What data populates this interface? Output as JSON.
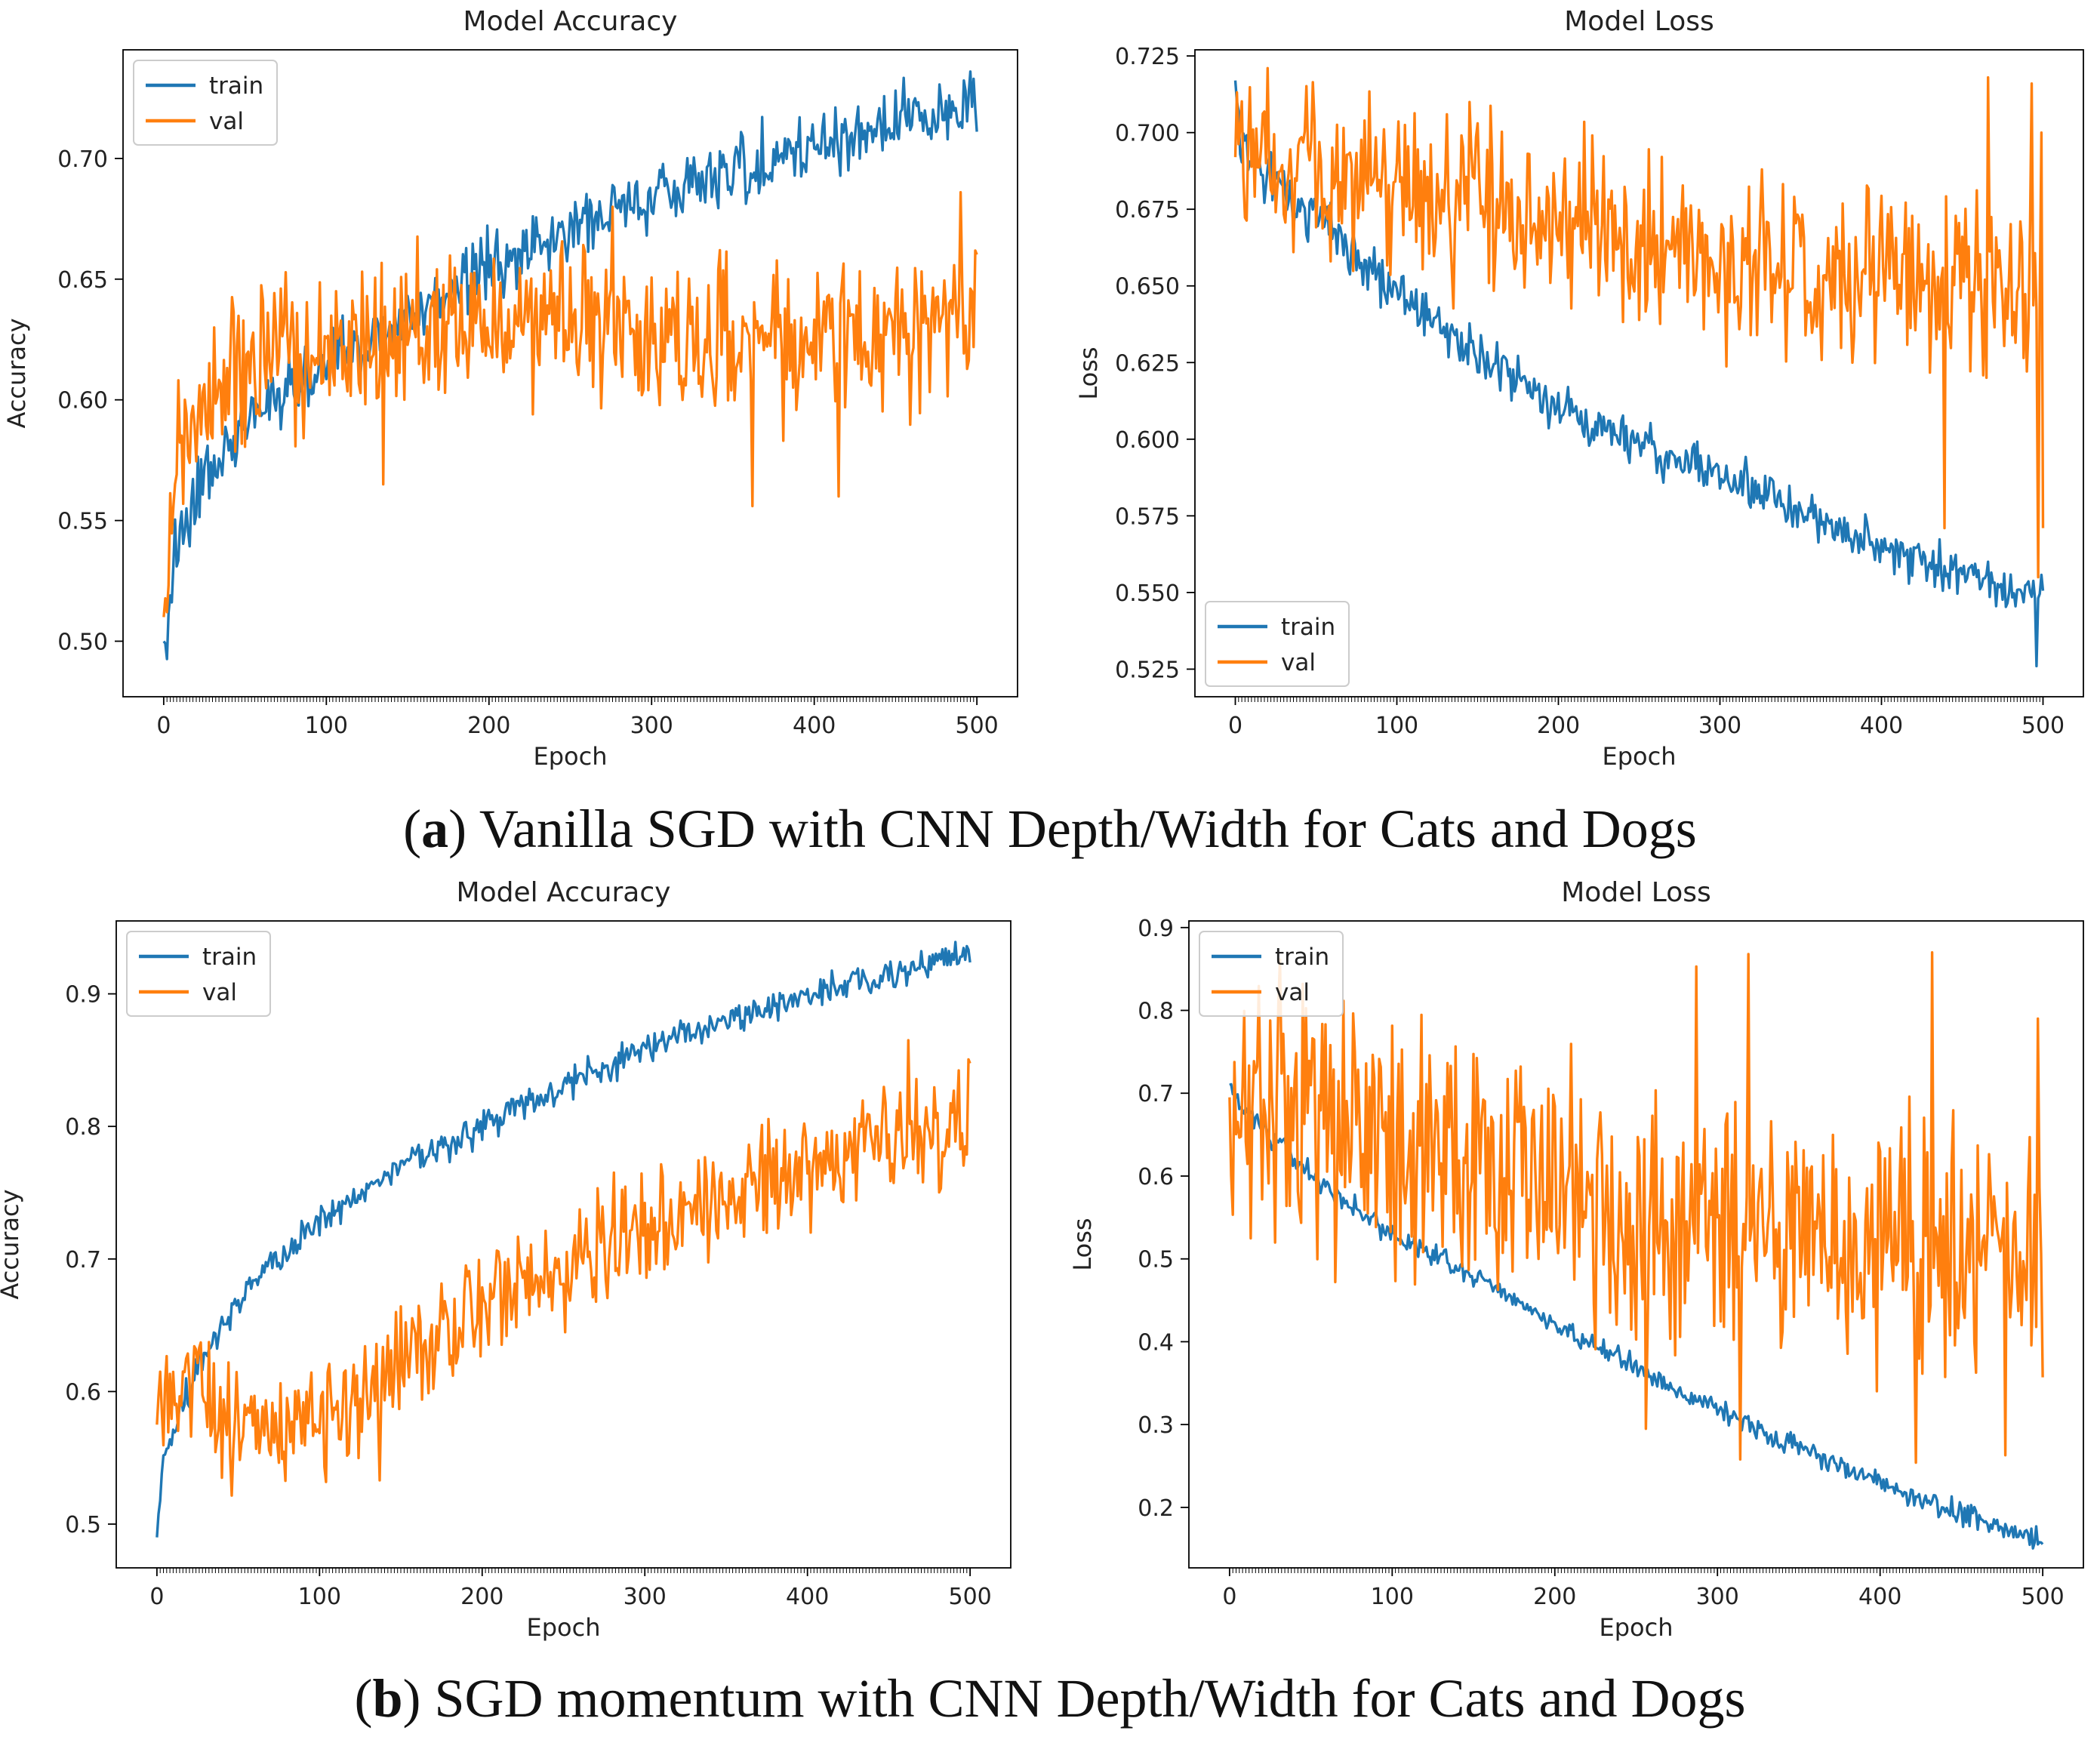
{
  "colors": {
    "train": "#1f77b4",
    "val": "#ff7f0e",
    "axis": "#000000",
    "background": "#ffffff"
  },
  "captions": {
    "a": {
      "letter": "a",
      "text": "Vanilla SGD with CNN Depth/Width for Cats and Dogs"
    },
    "b": {
      "letter": "b",
      "text": "SGD momentum with CNN Depth/Width for Cats and Dogs"
    }
  },
  "chart_data": [
    {
      "id": "a-accuracy",
      "type": "line",
      "title": "Model Accuracy",
      "xlabel": "Epoch",
      "ylabel": "Accuracy",
      "xlim": [
        -25,
        525
      ],
      "ylim": [
        0.477,
        0.745
      ],
      "xticks": [
        0,
        100,
        200,
        300,
        400,
        500
      ],
      "yticks": [
        0.5,
        0.55,
        0.6,
        0.65,
        0.7
      ],
      "ytick_labels": [
        "0.50",
        "0.55",
        "0.60",
        "0.65",
        "0.70"
      ],
      "legend": {
        "position": "top-left",
        "entries": [
          "train",
          "val"
        ]
      },
      "epochs": 500,
      "series": [
        {
          "name": "train",
          "points": [
            [
              0,
              0.5
            ],
            [
              2,
              0.49
            ],
            [
              5,
              0.53
            ],
            [
              10,
              0.545
            ],
            [
              20,
              0.56
            ],
            [
              30,
              0.57
            ],
            [
              50,
              0.59
            ],
            [
              75,
              0.605
            ],
            [
              100,
              0.615
            ],
            [
              150,
              0.635
            ],
            [
              200,
              0.655
            ],
            [
              250,
              0.67
            ],
            [
              300,
              0.685
            ],
            [
              350,
              0.695
            ],
            [
              400,
              0.705
            ],
            [
              450,
              0.715
            ],
            [
              500,
              0.725
            ]
          ],
          "noise": 0.007,
          "extremes": [
            [
              496,
              0.736
            ]
          ]
        },
        {
          "name": "val",
          "points": [
            [
              0,
              0.51
            ],
            [
              5,
              0.56
            ],
            [
              10,
              0.585
            ],
            [
              30,
              0.605
            ],
            [
              60,
              0.615
            ],
            [
              100,
              0.62
            ],
            [
              150,
              0.625
            ],
            [
              200,
              0.63
            ],
            [
              250,
              0.632
            ],
            [
              300,
              0.628
            ],
            [
              350,
              0.625
            ],
            [
              400,
              0.623
            ],
            [
              450,
              0.625
            ],
            [
              500,
              0.632
            ]
          ],
          "noise": 0.016,
          "extremes": [
            [
              276,
              0.68
            ],
            [
              362,
              0.556
            ],
            [
              415,
              0.56
            ],
            [
              490,
              0.686
            ],
            [
              135,
              0.565
            ]
          ]
        }
      ]
    },
    {
      "id": "a-loss",
      "type": "line",
      "title": "Model Loss",
      "xlabel": "Epoch",
      "ylabel": "Loss",
      "xlim": [
        -25,
        525
      ],
      "ylim": [
        0.516,
        0.727
      ],
      "xticks": [
        0,
        100,
        200,
        300,
        400,
        500
      ],
      "yticks": [
        0.525,
        0.55,
        0.575,
        0.6,
        0.625,
        0.65,
        0.675,
        0.7,
        0.725
      ],
      "ytick_labels": [
        "0.525",
        "0.550",
        "0.575",
        "0.600",
        "0.625",
        "0.650",
        "0.675",
        "0.700",
        "0.725"
      ],
      "legend": {
        "position": "bottom-left",
        "entries": [
          "train",
          "val"
        ]
      },
      "epochs": 500,
      "series": [
        {
          "name": "train",
          "points": [
            [
              0,
              0.717
            ],
            [
              3,
              0.695
            ],
            [
              10,
              0.69
            ],
            [
              50,
              0.672
            ],
            [
              100,
              0.648
            ],
            [
              150,
              0.628
            ],
            [
              200,
              0.61
            ],
            [
              250,
              0.598
            ],
            [
              300,
              0.588
            ],
            [
              350,
              0.575
            ],
            [
              400,
              0.566
            ],
            [
              450,
              0.556
            ],
            [
              500,
              0.548
            ]
          ],
          "noise": 0.004,
          "extremes": [
            [
              496,
              0.526
            ]
          ]
        },
        {
          "name": "val",
          "points": [
            [
              0,
              0.692
            ],
            [
              30,
              0.69
            ],
            [
              60,
              0.685
            ],
            [
              100,
              0.68
            ],
            [
              150,
              0.675
            ],
            [
              200,
              0.668
            ],
            [
              250,
              0.662
            ],
            [
              300,
              0.658
            ],
            [
              350,
              0.655
            ],
            [
              400,
              0.652
            ],
            [
              450,
              0.65
            ],
            [
              500,
              0.648
            ]
          ],
          "noise": 0.014,
          "extremes": [
            [
              150,
              0.703
            ],
            [
              439,
              0.571
            ],
            [
              466,
              0.718
            ],
            [
              493,
              0.716
            ],
            [
              497,
              0.555
            ],
            [
              499,
              0.7
            ],
            [
              500,
              0.571
            ]
          ]
        }
      ]
    },
    {
      "id": "b-accuracy",
      "type": "line",
      "title": "Model Accuracy",
      "xlabel": "Epoch",
      "ylabel": "Accuracy",
      "xlim": [
        -25,
        525
      ],
      "ylim": [
        0.467,
        0.955
      ],
      "xticks": [
        0,
        100,
        200,
        300,
        400,
        500
      ],
      "yticks": [
        0.5,
        0.6,
        0.7,
        0.8,
        0.9
      ],
      "ytick_labels": [
        "0.5",
        "0.6",
        "0.7",
        "0.8",
        "0.9"
      ],
      "legend": {
        "position": "top-left",
        "entries": [
          "train",
          "val"
        ]
      },
      "epochs": 500,
      "series": [
        {
          "name": "train",
          "points": [
            [
              0,
              0.49
            ],
            [
              3,
              0.54
            ],
            [
              10,
              0.57
            ],
            [
              20,
              0.6
            ],
            [
              30,
              0.63
            ],
            [
              50,
              0.67
            ],
            [
              75,
              0.7
            ],
            [
              100,
              0.73
            ],
            [
              150,
              0.77
            ],
            [
              200,
              0.8
            ],
            [
              250,
              0.83
            ],
            [
              300,
              0.86
            ],
            [
              350,
              0.88
            ],
            [
              400,
              0.9
            ],
            [
              450,
              0.915
            ],
            [
              500,
              0.93
            ]
          ],
          "noise": 0.006,
          "extremes": [
            [
              498,
              0.936
            ]
          ]
        },
        {
          "name": "val",
          "points": [
            [
              0,
              0.575
            ],
            [
              10,
              0.6
            ],
            [
              25,
              0.625
            ],
            [
              35,
              0.58
            ],
            [
              60,
              0.575
            ],
            [
              100,
              0.58
            ],
            [
              130,
              0.595
            ],
            [
              160,
              0.625
            ],
            [
              200,
              0.665
            ],
            [
              250,
              0.7
            ],
            [
              300,
              0.725
            ],
            [
              350,
              0.745
            ],
            [
              400,
              0.77
            ],
            [
              450,
              0.79
            ],
            [
              500,
              0.81
            ]
          ],
          "noise": 0.022,
          "extremes": [
            [
              462,
              0.865
            ],
            [
              137,
              0.533
            ],
            [
              40,
              0.535
            ]
          ]
        }
      ]
    },
    {
      "id": "b-loss",
      "type": "line",
      "title": "Model Loss",
      "xlabel": "Epoch",
      "ylabel": "Loss",
      "xlim": [
        -25,
        525
      ],
      "ylim": [
        0.127,
        0.908
      ],
      "xticks": [
        0,
        100,
        200,
        300,
        400,
        500
      ],
      "yticks": [
        0.2,
        0.3,
        0.4,
        0.5,
        0.6,
        0.7,
        0.8,
        0.9
      ],
      "ytick_labels": [
        "0.2",
        "0.3",
        "0.4",
        "0.5",
        "0.6",
        "0.7",
        "0.8",
        "0.9"
      ],
      "legend": {
        "position": "top-left",
        "entries": [
          "train",
          "val"
        ]
      },
      "epochs": 500,
      "series": [
        {
          "name": "train",
          "points": [
            [
              0,
              0.71
            ],
            [
              10,
              0.68
            ],
            [
              50,
              0.6
            ],
            [
              100,
              0.53
            ],
            [
              150,
              0.48
            ],
            [
              200,
              0.42
            ],
            [
              250,
              0.37
            ],
            [
              300,
              0.32
            ],
            [
              350,
              0.27
            ],
            [
              400,
              0.23
            ],
            [
              450,
              0.19
            ],
            [
              500,
              0.16
            ]
          ],
          "noise": 0.007
        },
        {
          "name": "val",
          "points": [
            [
              0,
              0.695
            ],
            [
              30,
              0.68
            ],
            [
              60,
              0.665
            ],
            [
              100,
              0.645
            ],
            [
              150,
              0.615
            ],
            [
              200,
              0.585
            ],
            [
              250,
              0.56
            ],
            [
              300,
              0.545
            ],
            [
              350,
              0.53
            ],
            [
              400,
              0.52
            ],
            [
              450,
              0.515
            ],
            [
              500,
              0.51
            ]
          ],
          "noise": 0.08,
          "extremes": [
            [
              287,
              0.853
            ],
            [
              319,
              0.868
            ],
            [
              432,
              0.87
            ],
            [
              256,
              0.295
            ],
            [
              314,
              0.258
            ],
            [
              422,
              0.254
            ],
            [
              477,
              0.263
            ],
            [
              497,
              0.79
            ],
            [
              500,
              0.357
            ]
          ]
        }
      ]
    }
  ]
}
